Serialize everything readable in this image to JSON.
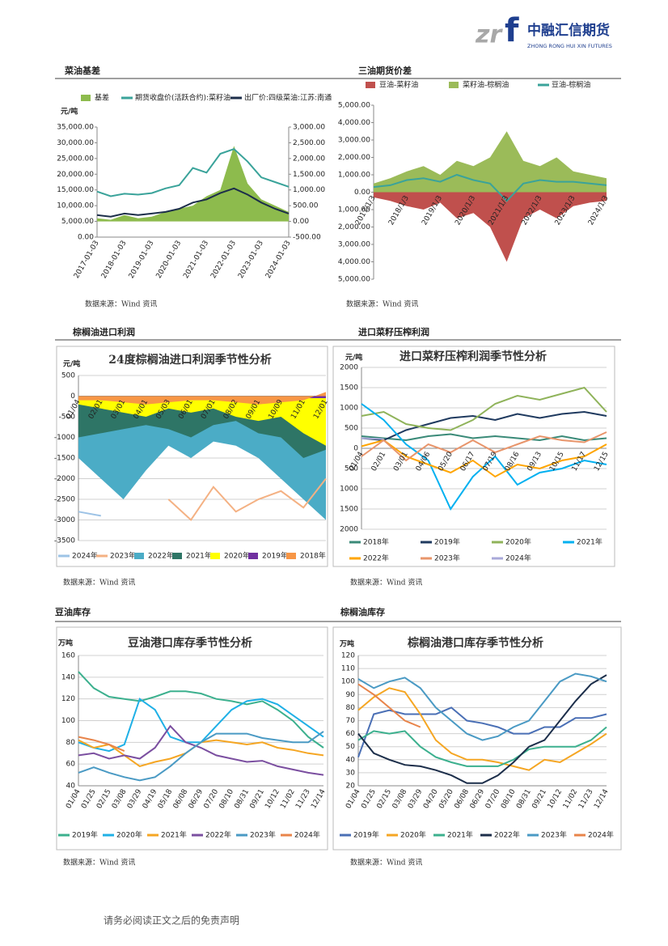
{
  "header": {
    "company": "中融汇信期货",
    "company_en": "ZHONG RONG HUI XIN FUTURES"
  },
  "footer": "请务必阅读正文之后的免责声明",
  "chart_data": [
    {
      "type": "line",
      "section_title": "菜油基差",
      "source": "数据来源：Wind 资讯",
      "ylabel": "元/吨",
      "grid": false,
      "categories": [
        "2017-01-03",
        null,
        "2018-01-03",
        null,
        "2019-01-03",
        null,
        "2020-01-03",
        null,
        "2021-01-03",
        null,
        "2022-01-03",
        null,
        "2023-01-03",
        null,
        "2024-01-03"
      ],
      "ylim": [
        0,
        35000
      ],
      "yticks": [
        {
          "value": 0,
          "label": "0.00"
        },
        {
          "value": 5000,
          "label": "5,000.00"
        },
        {
          "value": 10000,
          "label": "10,000.00"
        },
        {
          "value": 15000,
          "label": "15,000.00"
        },
        {
          "value": 20000,
          "label": "20,000.00"
        },
        {
          "value": 25000,
          "label": "25,000.00"
        },
        {
          "value": 30000,
          "label": "30,000.00"
        },
        {
          "value": 35000,
          "label": "35,000.00"
        }
      ],
      "y2lim": [
        -500,
        3000
      ],
      "y2ticks": [
        {
          "value": -500,
          "label": "-500.00"
        },
        {
          "value": 0,
          "label": "0.00"
        },
        {
          "value": 500,
          "label": "500.00"
        },
        {
          "value": 1000,
          "label": "1,000.00"
        },
        {
          "value": 1500,
          "label": "1,500.00"
        },
        {
          "value": 2000,
          "label": "2,000.00"
        },
        {
          "value": 2500,
          "label": "2,500.00"
        },
        {
          "value": 3000,
          "label": "3,000.00"
        }
      ],
      "series": [
        {
          "name": "基差",
          "color": "#8dbb4d",
          "style": "area",
          "axis": "y2",
          "values": [
            100,
            50,
            200,
            100,
            150,
            300,
            400,
            500,
            800,
            1000,
            2400,
            1200,
            700,
            500,
            300
          ]
        },
        {
          "name": "期货收盘价(活跃合约):菜籽油",
          "color": "#3aa39a",
          "style": "line",
          "values": [
            14500,
            13000,
            13800,
            13500,
            14000,
            15500,
            16500,
            22000,
            20500,
            26500,
            28000,
            24000,
            19000,
            17500,
            16000
          ]
        },
        {
          "name": "出厂价:四级菜油:江苏:南通",
          "color": "#1c2e4a",
          "style": "line",
          "values": [
            7000,
            6500,
            7500,
            7000,
            7500,
            8000,
            9000,
            11000,
            12000,
            14000,
            15500,
            13500,
            11000,
            9000,
            7500
          ]
        }
      ]
    },
    {
      "type": "line",
      "section_title": "三油期货价差",
      "source": "数据来源：Wind 资讯",
      "grid": false,
      "categories": [
        "2017/1/3",
        null,
        "2018/1/3",
        null,
        "2019/1/3",
        null,
        "2020/1/3",
        null,
        "2021/1/3",
        null,
        "2022/1/3",
        null,
        "2023/1/3",
        null,
        "2024/1/3"
      ],
      "ylim": [
        -5000,
        5000
      ],
      "yticks": [
        {
          "value": -5000,
          "label": "5,000.00"
        },
        {
          "value": -4000,
          "label": "4,000.00"
        },
        {
          "value": -3000,
          "label": "3,000.00"
        },
        {
          "value": -2000,
          "label": "2,000.00"
        },
        {
          "value": -1000,
          "label": "1,000.00"
        },
        {
          "value": 0,
          "label": "0.00"
        },
        {
          "value": 1000,
          "label": "1,000.00"
        },
        {
          "value": 2000,
          "label": "2,000.00"
        },
        {
          "value": 3000,
          "label": "3,000.00"
        },
        {
          "value": 4000,
          "label": "4,000.00"
        },
        {
          "value": 5000,
          "label": "5,000.00"
        }
      ],
      "series": [
        {
          "name": "豆油-菜籽油",
          "color": "#c0504d",
          "style": "area",
          "values": [
            -300,
            -500,
            -800,
            -1000,
            -600,
            -1500,
            -1200,
            -2000,
            -4000,
            -1500,
            -1000,
            -1500,
            -800,
            -600,
            -500
          ]
        },
        {
          "name": "菜籽油-棕榈油",
          "color": "#9bbb59",
          "style": "area",
          "values": [
            500,
            800,
            1200,
            1500,
            1000,
            1800,
            1500,
            2000,
            3500,
            1800,
            1500,
            2000,
            1200,
            1000,
            800
          ]
        },
        {
          "name": "豆油-棕榈油",
          "color": "#3aa39a",
          "style": "line",
          "values": [
            300,
            400,
            700,
            800,
            600,
            1000,
            700,
            500,
            -500,
            500,
            700,
            600,
            600,
            500,
            400
          ]
        }
      ]
    },
    {
      "type": "area",
      "section_title": "棕榈油进口利润",
      "title": "24度棕榈油进口利润季节性分析",
      "source": "数据来源：Wind 资讯",
      "ylabel": "元/吨",
      "grid": true,
      "categories": [
        "01/04",
        "02/01",
        "03/01",
        "04/01",
        "05/03",
        "06/01",
        "07/01",
        "08/02",
        "09/01",
        "10/09",
        "11/01",
        "12/01"
      ],
      "ylim": [
        -3500,
        500
      ],
      "yticks": [
        -3500,
        -3000,
        -2500,
        -2000,
        -1500,
        -1000,
        -500,
        0,
        500
      ],
      "series": [
        {
          "name": "2024年",
          "color": "#9dc3e6",
          "style": "line",
          "values": [
            -2800,
            -2900,
            null,
            null,
            null,
            null,
            null,
            null,
            null,
            null,
            null,
            null
          ]
        },
        {
          "name": "2023年",
          "color": "#f4b183",
          "style": "line",
          "values": [
            null,
            null,
            null,
            null,
            -2500,
            -3000,
            -2200,
            -2800,
            -2500,
            -2300,
            -2700,
            -2000
          ]
        },
        {
          "name": "2022年",
          "color": "#4bacc6",
          "style": "area",
          "values": [
            -1500,
            -2000,
            -2500,
            -1800,
            -1200,
            -1500,
            -1100,
            -1200,
            -1500,
            -2000,
            -2500,
            -3000
          ]
        },
        {
          "name": "2021年",
          "color": "#2e7566",
          "style": "area",
          "values": [
            -1000,
            -900,
            -800,
            -700,
            -800,
            -1000,
            -700,
            -600,
            -900,
            -1000,
            -1500,
            -1300
          ]
        },
        {
          "name": "2020年",
          "color": "#ffff00",
          "style": "area",
          "values": [
            -200,
            -300,
            -400,
            -500,
            -300,
            -400,
            -300,
            -500,
            -600,
            -500,
            -900,
            -1200
          ]
        },
        {
          "name": "2019年",
          "color": "#7030a0",
          "style": "area",
          "values": [
            -50,
            -100,
            -100,
            -150,
            -100,
            -50,
            -100,
            -50,
            -100,
            -100,
            -50,
            -50
          ]
        },
        {
          "name": "2018年",
          "color": "#f79646",
          "style": "area",
          "values": [
            -100,
            -100,
            -150,
            -200,
            -150,
            -100,
            -100,
            -150,
            -200,
            -150,
            -100,
            100
          ]
        }
      ]
    },
    {
      "type": "line",
      "section_title": "进口菜籽压榨利润",
      "title": "进口菜籽压榨利润季节性分析",
      "source": "数据来源：Wind 资讯",
      "ylabel": "元/吨",
      "grid": true,
      "categories": [
        "01/04",
        "02/01",
        "03/01",
        "04/06",
        "05/20",
        "06/17",
        "07/19",
        "08/16",
        "09/13",
        "10/15",
        "11/17",
        "12/15"
      ],
      "ylim": [
        -2000,
        2000
      ],
      "yticks": [
        {
          "value": -2000,
          "label": "2000"
        },
        {
          "value": -1500,
          "label": "1500"
        },
        {
          "value": -1000,
          "label": "1000"
        },
        {
          "value": -500,
          "label": "500"
        },
        0,
        500,
        1000,
        1500,
        2000
      ],
      "series": [
        {
          "name": "2018年",
          "color": "#3a8a78",
          "style": "line",
          "values": [
            300,
            250,
            200,
            300,
            350,
            250,
            300,
            250,
            200,
            300,
            200,
            250
          ]
        },
        {
          "name": "2019年",
          "color": "#1f3a5f",
          "style": "line",
          "values": [
            250,
            200,
            450,
            600,
            750,
            800,
            700,
            850,
            750,
            850,
            900,
            800
          ]
        },
        {
          "name": "2020年",
          "color": "#8fb35a",
          "style": "line",
          "values": [
            800,
            900,
            600,
            500,
            450,
            700,
            1100,
            1300,
            1200,
            1350,
            1500,
            900
          ]
        },
        {
          "name": "2021年",
          "color": "#00b0f0",
          "style": "line",
          "values": [
            1100,
            700,
            100,
            -300,
            -1500,
            -700,
            -200,
            -900,
            -600,
            -500,
            -300,
            -400
          ]
        },
        {
          "name": "2022年",
          "color": "#ffa500",
          "style": "line",
          "values": [
            50,
            200,
            -200,
            -400,
            -600,
            -300,
            -700,
            -400,
            -500,
            -300,
            -200,
            100
          ]
        },
        {
          "name": "2023年",
          "color": "#e8956b",
          "style": "line",
          "values": [
            -200,
            200,
            -300,
            100,
            -100,
            200,
            -100,
            100,
            300,
            200,
            150,
            400
          ]
        },
        {
          "name": "2024年",
          "color": "#a9a9d9",
          "style": "line",
          "values": [
            250,
            230,
            null,
            null,
            null,
            null,
            null,
            null,
            null,
            null,
            null,
            null
          ]
        }
      ]
    },
    {
      "type": "line",
      "section_title": "豆油库存",
      "title": "豆油港口库存季节性分析",
      "source": "数据来源：Wind 资讯",
      "ylabel": "万吨",
      "grid": true,
      "categories": [
        "01/04",
        "01/25",
        "02/15",
        "03/08",
        "03/29",
        "04/19",
        "05/18",
        "06/08",
        "06/29",
        "07/20",
        "08/10",
        "08/31",
        "09/21",
        "10/12",
        "11/02",
        "11/23",
        "12/14"
      ],
      "ylim": [
        40,
        160
      ],
      "yticks": [
        40,
        60,
        80,
        100,
        120,
        140,
        160
      ],
      "series": [
        {
          "name": "2019年",
          "color": "#3cb08e",
          "style": "line",
          "values": [
            145,
            130,
            122,
            120,
            118,
            122,
            127,
            127,
            125,
            120,
            118,
            115,
            118,
            110,
            100,
            85,
            75
          ]
        },
        {
          "name": "2020年",
          "color": "#1fb0e6",
          "style": "line",
          "values": [
            80,
            75,
            72,
            78,
            120,
            110,
            85,
            80,
            80,
            95,
            110,
            118,
            120,
            115,
            105,
            95,
            85
          ]
        },
        {
          "name": "2021年",
          "color": "#f5a623",
          "style": "line",
          "values": [
            82,
            75,
            78,
            68,
            58,
            62,
            65,
            70,
            80,
            82,
            80,
            78,
            80,
            75,
            73,
            70,
            68
          ]
        },
        {
          "name": "2022年",
          "color": "#7b4fa0",
          "style": "line",
          "values": [
            68,
            70,
            65,
            68,
            65,
            75,
            95,
            80,
            75,
            68,
            65,
            62,
            63,
            58,
            55,
            52,
            50
          ]
        },
        {
          "name": "2023年",
          "color": "#4a9ac4",
          "style": "line",
          "values": [
            52,
            57,
            52,
            48,
            45,
            48,
            58,
            70,
            80,
            88,
            88,
            88,
            84,
            82,
            80,
            80,
            90
          ]
        },
        {
          "name": "2024年",
          "color": "#e8844a",
          "style": "line",
          "values": [
            85,
            82,
            78,
            72,
            null,
            null,
            null,
            null,
            null,
            null,
            null,
            null,
            null,
            null,
            null,
            null,
            null
          ]
        }
      ]
    },
    {
      "type": "line",
      "section_title": "棕榈油库存",
      "title": "棕榈油港口库存季节性分析",
      "source": "数据来源：Wind 资讯",
      "ylabel": "万吨",
      "grid": true,
      "categories": [
        "01/04",
        "01/25",
        "02/15",
        "03/08",
        "03/29",
        "04/20",
        "05/20",
        "06/08",
        "06/29",
        "07/20",
        "08/10",
        "08/31",
        "09/21",
        "10/12",
        "11/02",
        "11/23",
        "12/14"
      ],
      "ylim": [
        20,
        120
      ],
      "yticks": [
        20,
        30,
        40,
        50,
        60,
        70,
        80,
        90,
        100,
        110,
        120
      ],
      "series": [
        {
          "name": "2019年",
          "color": "#4a6fb5",
          "style": "line",
          "values": [
            42,
            75,
            78,
            75,
            75,
            75,
            80,
            70,
            68,
            65,
            60,
            60,
            65,
            65,
            72,
            72,
            75
          ]
        },
        {
          "name": "2020年",
          "color": "#f5a623",
          "style": "line",
          "values": [
            78,
            88,
            95,
            92,
            75,
            55,
            45,
            40,
            40,
            38,
            35,
            32,
            40,
            38,
            45,
            52,
            60
          ]
        },
        {
          "name": "2021年",
          "color": "#3cb08e",
          "style": "line",
          "values": [
            55,
            62,
            60,
            62,
            50,
            42,
            38,
            35,
            35,
            35,
            40,
            48,
            50,
            50,
            50,
            55,
            65
          ]
        },
        {
          "name": "2022年",
          "color": "#1c2e4a",
          "style": "line",
          "values": [
            60,
            45,
            40,
            36,
            35,
            32,
            28,
            22,
            22,
            28,
            38,
            50,
            55,
            70,
            85,
            98,
            105
          ]
        },
        {
          "name": "2023年",
          "color": "#4a9ac4",
          "style": "line",
          "values": [
            102,
            95,
            100,
            103,
            95,
            80,
            70,
            60,
            55,
            58,
            65,
            70,
            85,
            100,
            106,
            104,
            100
          ]
        },
        {
          "name": "2024年",
          "color": "#e8844a",
          "style": "line",
          "values": [
            98,
            90,
            80,
            70,
            65,
            null,
            null,
            null,
            null,
            null,
            null,
            null,
            null,
            null,
            null,
            null,
            null
          ]
        }
      ]
    }
  ]
}
